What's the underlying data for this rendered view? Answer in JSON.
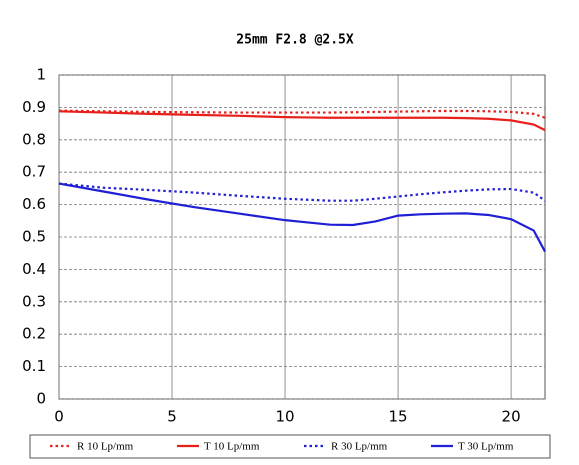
{
  "chart_data": {
    "type": "line",
    "title": "25mm F2.8  @2.5X",
    "x": [
      0,
      2,
      4,
      6,
      8,
      10,
      11,
      12,
      13,
      14,
      15,
      16,
      17,
      18,
      19,
      20,
      21,
      21.5
    ],
    "xlim": [
      0,
      21.5
    ],
    "xticks": [
      0,
      5,
      10,
      15,
      20
    ],
    "ylim": [
      0,
      1
    ],
    "yticks": [
      0,
      0.1,
      0.2,
      0.3,
      0.4,
      0.5,
      0.6,
      0.7,
      0.8,
      0.9,
      1
    ],
    "grid": true,
    "legend": "bottom",
    "series": [
      {
        "name": "R 10 Lp/mm",
        "color": "#e8201c",
        "style": "dotted",
        "values": [
          0.89,
          0.888,
          0.886,
          0.885,
          0.884,
          0.884,
          0.884,
          0.884,
          0.885,
          0.886,
          0.887,
          0.888,
          0.889,
          0.889,
          0.888,
          0.886,
          0.88,
          0.868
        ]
      },
      {
        "name": "T 10 Lp/mm",
        "color": "#e8201c",
        "style": "solid",
        "values": [
          0.888,
          0.884,
          0.88,
          0.877,
          0.874,
          0.87,
          0.869,
          0.868,
          0.868,
          0.868,
          0.868,
          0.868,
          0.868,
          0.867,
          0.865,
          0.86,
          0.847,
          0.83
        ]
      },
      {
        "name": "R 30 Lp/mm",
        "color": "#1f1fd6",
        "style": "dotted",
        "values": [
          0.665,
          0.652,
          0.645,
          0.637,
          0.627,
          0.618,
          0.615,
          0.612,
          0.612,
          0.618,
          0.625,
          0.632,
          0.638,
          0.643,
          0.647,
          0.648,
          0.637,
          0.612
        ]
      },
      {
        "name": "T 30 Lp/mm",
        "color": "#1f1fd6",
        "style": "solid",
        "values": [
          0.665,
          0.64,
          0.615,
          0.592,
          0.572,
          0.552,
          0.545,
          0.538,
          0.537,
          0.548,
          0.566,
          0.57,
          0.572,
          0.573,
          0.568,
          0.555,
          0.52,
          0.455
        ]
      }
    ]
  }
}
